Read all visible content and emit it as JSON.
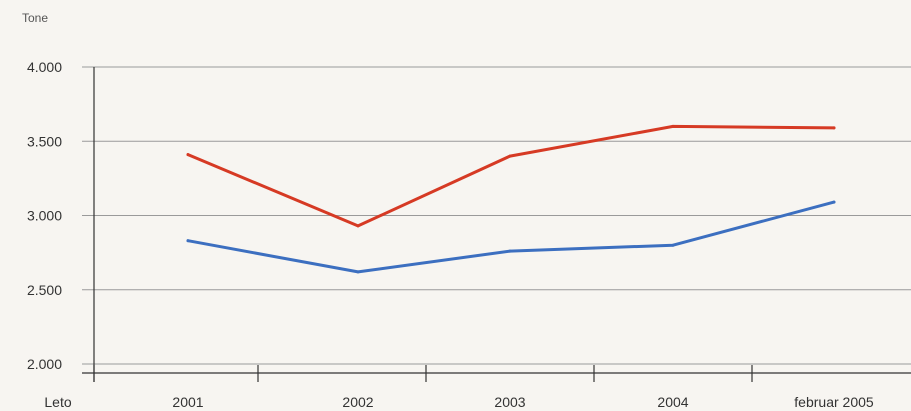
{
  "chart_data": {
    "type": "line",
    "ylabel": "Tone",
    "xlabel": "Leto",
    "categories": [
      "2001",
      "2002",
      "2003",
      "2004",
      "februar 2005"
    ],
    "ylim": [
      2000,
      4000
    ],
    "yticks": [
      "2.000",
      "2.500",
      "3.000",
      "3.500",
      "4.000"
    ],
    "ytick_values": [
      2000,
      2500,
      3000,
      3500,
      4000
    ],
    "grid": true,
    "series": [
      {
        "color": "#d63a24",
        "values": [
          3410,
          2930,
          3400,
          3600,
          3590
        ]
      },
      {
        "color": "#3c6fc0",
        "values": [
          2830,
          2620,
          2760,
          2800,
          3090
        ]
      }
    ],
    "colors": {
      "gridline": "#9a9a9a",
      "axis": "#333333"
    }
  }
}
